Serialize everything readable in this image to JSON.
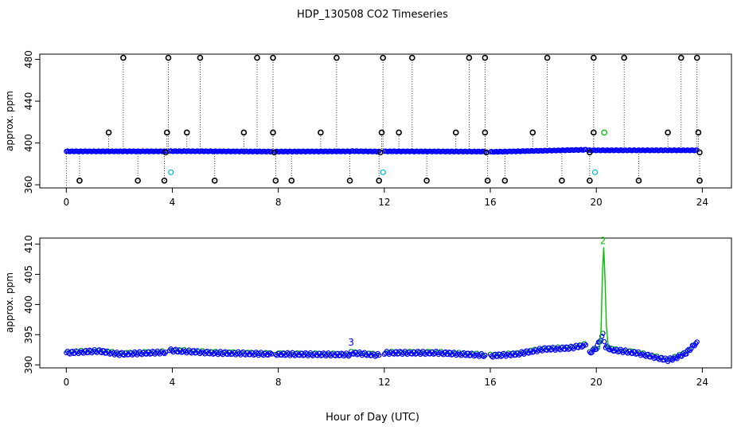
{
  "title": "HDP_130508  CO2 Timeseries",
  "xlabel": "Hour of Day (UTC)",
  "colors": {
    "main": "#0000ff",
    "outlier": "#000000",
    "aux": "#00c000",
    "cyan": "#00bcd4"
  },
  "chart_data": [
    {
      "type": "scatter",
      "ylabel": "approx. ppm",
      "xlim": [
        -1,
        25.1
      ],
      "ylim": [
        357,
        485
      ],
      "xticks": [
        0,
        4,
        8,
        12,
        16,
        20,
        24
      ],
      "yticks": [
        360,
        400,
        440,
        480
      ],
      "baseline_segments": [
        {
          "x0": 0.0,
          "x1": 3.75,
          "y0": 392.0,
          "y1": 392.0
        },
        {
          "x0": 3.9,
          "x1": 7.75,
          "y0": 392.2,
          "y1": 391.8
        },
        {
          "x0": 7.9,
          "x1": 10.7,
          "y0": 391.8,
          "y1": 392.0
        },
        {
          "x0": 10.75,
          "x1": 11.8,
          "y0": 392.2,
          "y1": 391.8
        },
        {
          "x0": 12.0,
          "x1": 15.8,
          "y0": 392.0,
          "y1": 391.8
        },
        {
          "x0": 16.0,
          "x1": 19.6,
          "y0": 391.5,
          "y1": 393.5
        },
        {
          "x0": 19.7,
          "x1": 23.8,
          "y0": 393.0,
          "y1": 393.0
        }
      ],
      "spikes_high": [
        2.15,
        3.85,
        5.05,
        7.2,
        7.8,
        10.2,
        11.95,
        13.05,
        15.2,
        15.8,
        18.15,
        19.9,
        21.05,
        23.2,
        23.8
      ],
      "spikes_low": [
        0.5,
        2.7,
        3.7,
        5.6,
        7.9,
        8.5,
        10.7,
        11.8,
        13.6,
        15.9,
        16.55,
        18.7,
        19.75,
        21.6,
        23.9
      ],
      "mid_outliers": [
        1.6,
        3.8,
        4.55,
        6.7,
        7.8,
        9.6,
        11.9,
        12.55,
        14.7,
        15.8,
        17.6,
        19.9,
        22.7,
        23.85
      ],
      "mid_value": 410,
      "cyan_points": [
        {
          "x": 3.95,
          "y": 372
        },
        {
          "x": 11.95,
          "y": 372
        },
        {
          "x": 19.95,
          "y": 372
        }
      ],
      "green_points": [
        {
          "x": 20.3,
          "y": 410
        }
      ]
    },
    {
      "type": "scatter",
      "ylabel": "approx. ppm",
      "xlim": [
        -1,
        25.1
      ],
      "ylim": [
        389.5,
        411.0
      ],
      "xticks": [
        0,
        4,
        8,
        12,
        16,
        20,
        24
      ],
      "yticks": [
        390,
        395,
        400,
        405,
        410
      ],
      "segments": [
        [
          [
            0.0,
            392.0
          ],
          [
            1.2,
            392.3
          ],
          [
            2.0,
            391.8
          ],
          [
            3.75,
            392.1
          ]
        ],
        [
          [
            3.9,
            392.4
          ],
          [
            5.5,
            392.0
          ],
          [
            7.75,
            391.8
          ]
        ],
        [
          [
            7.9,
            391.8
          ],
          [
            10.7,
            391.7
          ]
        ],
        [
          [
            10.75,
            392.0
          ],
          [
            11.8,
            391.6
          ]
        ],
        [
          [
            12.0,
            392.0
          ],
          [
            14.0,
            392.0
          ],
          [
            15.8,
            391.6
          ]
        ],
        [
          [
            16.0,
            391.5
          ],
          [
            17.0,
            391.8
          ],
          [
            18.0,
            392.6
          ],
          [
            19.0,
            392.8
          ],
          [
            19.6,
            393.3
          ]
        ],
        [
          [
            19.75,
            392.0
          ],
          [
            20.0,
            392.8
          ],
          [
            20.25,
            395.0
          ],
          [
            20.35,
            393.0
          ],
          [
            20.6,
            392.5
          ],
          [
            21.5,
            392.0
          ],
          [
            22.0,
            391.5
          ],
          [
            22.7,
            390.8
          ],
          [
            23.0,
            391.2
          ],
          [
            23.4,
            392.0
          ],
          [
            23.8,
            393.8
          ]
        ]
      ],
      "green_trace": [
        [
          20.12,
          392.5
        ],
        [
          20.18,
          396.0
        ],
        [
          20.23,
          405.0
        ],
        [
          20.28,
          409.5
        ],
        [
          20.33,
          404.0
        ],
        [
          20.38,
          396.5
        ],
        [
          20.45,
          393.0
        ]
      ],
      "labels": [
        {
          "x": 10.75,
          "y": 393.2,
          "text": "3",
          "color": "#0000ff"
        },
        {
          "x": 20.25,
          "y": 410.0,
          "text": "2",
          "color": "#00c000"
        }
      ]
    }
  ]
}
